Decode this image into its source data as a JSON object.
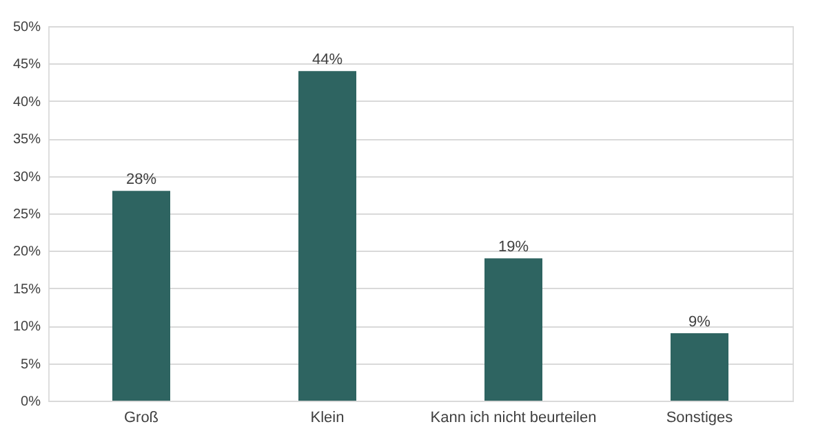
{
  "chart_data": {
    "type": "bar",
    "categories": [
      "Groß",
      "Klein",
      "Kann ich nicht beurteilen",
      "Sonstiges"
    ],
    "values": [
      28,
      44,
      19,
      9
    ],
    "value_labels": [
      "28%",
      "44%",
      "19%",
      "9%"
    ],
    "color": "#2e6461",
    "ylim": [
      0,
      50
    ],
    "yticks": [
      {
        "value": 0,
        "label": "0%"
      },
      {
        "value": 5,
        "label": "5%"
      },
      {
        "value": 10,
        "label": "10%"
      },
      {
        "value": 15,
        "label": "15%"
      },
      {
        "value": 20,
        "label": "20%"
      },
      {
        "value": 25,
        "label": "25%"
      },
      {
        "value": 30,
        "label": "30%"
      },
      {
        "value": 35,
        "label": "35%"
      },
      {
        "value": 40,
        "label": "40%"
      },
      {
        "value": 45,
        "label": "45%"
      },
      {
        "value": 50,
        "label": "50%"
      }
    ],
    "grid": "y"
  }
}
